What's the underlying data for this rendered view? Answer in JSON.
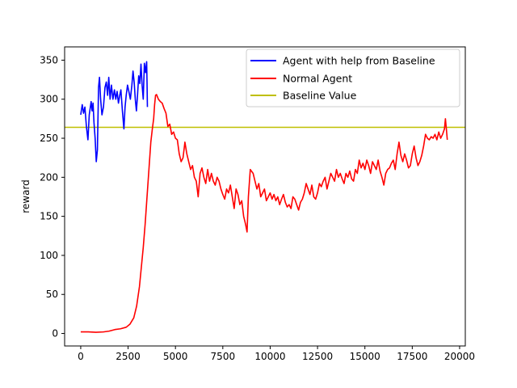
{
  "chart_data": {
    "type": "line",
    "title": "",
    "xlabel": "",
    "ylabel": "reward",
    "xlim": [
      -850,
      20300
    ],
    "ylim": [
      -16,
      367
    ],
    "xticks": [
      0,
      2500,
      5000,
      7500,
      10000,
      12500,
      15000,
      17500,
      20000
    ],
    "xtick_labels": [
      "0",
      "2500",
      "5000",
      "7500",
      "10000",
      "12500",
      "15000",
      "17500",
      "20000"
    ],
    "yticks": [
      0,
      50,
      100,
      150,
      200,
      250,
      300,
      350
    ],
    "ytick_labels": [
      "0",
      "50",
      "100",
      "150",
      "200",
      "250",
      "300",
      "350"
    ],
    "grid": false,
    "legend_position": "top-right",
    "series": [
      {
        "name": "Agent with help from Baseline",
        "color": "#0000ff",
        "kind": "line",
        "points": [
          [
            0,
            280
          ],
          [
            80,
            293
          ],
          [
            150,
            282
          ],
          [
            220,
            290
          ],
          [
            300,
            265
          ],
          [
            380,
            248
          ],
          [
            450,
            280
          ],
          [
            550,
            297
          ],
          [
            600,
            285
          ],
          [
            650,
            295
          ],
          [
            700,
            270
          ],
          [
            760,
            250
          ],
          [
            820,
            220
          ],
          [
            880,
            235
          ],
          [
            940,
            315
          ],
          [
            990,
            328
          ],
          [
            1050,
            300
          ],
          [
            1120,
            280
          ],
          [
            1200,
            290
          ],
          [
            1280,
            315
          ],
          [
            1350,
            322
          ],
          [
            1420,
            305
          ],
          [
            1480,
            328
          ],
          [
            1550,
            300
          ],
          [
            1620,
            318
          ],
          [
            1700,
            300
          ],
          [
            1780,
            312
          ],
          [
            1850,
            300
          ],
          [
            1920,
            310
          ],
          [
            1990,
            295
          ],
          [
            2060,
            305
          ],
          [
            2120,
            312
          ],
          [
            2200,
            285
          ],
          [
            2280,
            262
          ],
          [
            2340,
            290
          ],
          [
            2400,
            305
          ],
          [
            2470,
            318
          ],
          [
            2540,
            310
          ],
          [
            2620,
            300
          ],
          [
            2700,
            318
          ],
          [
            2760,
            336
          ],
          [
            2820,
            322
          ],
          [
            2880,
            300
          ],
          [
            2940,
            285
          ],
          [
            3000,
            306
          ],
          [
            3060,
            330
          ],
          [
            3120,
            320
          ],
          [
            3180,
            345
          ],
          [
            3240,
            318
          ],
          [
            3300,
            300
          ],
          [
            3360,
            346
          ],
          [
            3420,
            334
          ],
          [
            3480,
            348
          ],
          [
            3500,
            322
          ],
          [
            3520,
            290
          ]
        ]
      },
      {
        "name": "Normal Agent",
        "color": "#ff0000",
        "kind": "line",
        "points": [
          [
            0,
            2
          ],
          [
            400,
            2
          ],
          [
            800,
            1.5
          ],
          [
            1200,
            2
          ],
          [
            1500,
            3
          ],
          [
            1800,
            5
          ],
          [
            2100,
            6
          ],
          [
            2400,
            8
          ],
          [
            2600,
            12
          ],
          [
            2800,
            20
          ],
          [
            2950,
            35
          ],
          [
            3100,
            60
          ],
          [
            3200,
            85
          ],
          [
            3300,
            110
          ],
          [
            3400,
            140
          ],
          [
            3500,
            175
          ],
          [
            3600,
            210
          ],
          [
            3700,
            245
          ],
          [
            3780,
            262
          ],
          [
            3850,
            275
          ],
          [
            3900,
            293
          ],
          [
            3950,
            305
          ],
          [
            4000,
            306
          ],
          [
            4100,
            300
          ],
          [
            4200,
            297
          ],
          [
            4300,
            295
          ],
          [
            4400,
            288
          ],
          [
            4500,
            282
          ],
          [
            4600,
            265
          ],
          [
            4700,
            268
          ],
          [
            4800,
            255
          ],
          [
            4900,
            258
          ],
          [
            5000,
            250
          ],
          [
            5100,
            248
          ],
          [
            5200,
            230
          ],
          [
            5300,
            220
          ],
          [
            5400,
            225
          ],
          [
            5500,
            245
          ],
          [
            5600,
            230
          ],
          [
            5700,
            220
          ],
          [
            5800,
            210
          ],
          [
            5900,
            215
          ],
          [
            6000,
            200
          ],
          [
            6100,
            195
          ],
          [
            6200,
            175
          ],
          [
            6300,
            205
          ],
          [
            6400,
            212
          ],
          [
            6500,
            200
          ],
          [
            6600,
            192
          ],
          [
            6700,
            210
          ],
          [
            6800,
            195
          ],
          [
            6900,
            205
          ],
          [
            7000,
            195
          ],
          [
            7100,
            190
          ],
          [
            7200,
            200
          ],
          [
            7300,
            195
          ],
          [
            7400,
            185
          ],
          [
            7500,
            178
          ],
          [
            7600,
            172
          ],
          [
            7700,
            185
          ],
          [
            7800,
            180
          ],
          [
            7900,
            190
          ],
          [
            8000,
            175
          ],
          [
            8100,
            160
          ],
          [
            8200,
            185
          ],
          [
            8300,
            178
          ],
          [
            8400,
            165
          ],
          [
            8500,
            170
          ],
          [
            8600,
            150
          ],
          [
            8700,
            140
          ],
          [
            8780,
            130
          ],
          [
            8850,
            175
          ],
          [
            8950,
            210
          ],
          [
            9100,
            205
          ],
          [
            9200,
            195
          ],
          [
            9300,
            185
          ],
          [
            9400,
            192
          ],
          [
            9500,
            175
          ],
          [
            9600,
            180
          ],
          [
            9700,
            185
          ],
          [
            9800,
            170
          ],
          [
            9900,
            175
          ],
          [
            10000,
            180
          ],
          [
            10100,
            172
          ],
          [
            10200,
            178
          ],
          [
            10300,
            170
          ],
          [
            10400,
            175
          ],
          [
            10500,
            165
          ],
          [
            10600,
            172
          ],
          [
            10700,
            178
          ],
          [
            10800,
            168
          ],
          [
            10900,
            162
          ],
          [
            11000,
            165
          ],
          [
            11100,
            160
          ],
          [
            11200,
            175
          ],
          [
            11300,
            172
          ],
          [
            11400,
            165
          ],
          [
            11500,
            158
          ],
          [
            11600,
            168
          ],
          [
            11700,
            172
          ],
          [
            11800,
            180
          ],
          [
            11900,
            192
          ],
          [
            12000,
            185
          ],
          [
            12100,
            178
          ],
          [
            12200,
            190
          ],
          [
            12300,
            175
          ],
          [
            12400,
            172
          ],
          [
            12500,
            180
          ],
          [
            12600,
            192
          ],
          [
            12700,
            188
          ],
          [
            12800,
            195
          ],
          [
            12900,
            200
          ],
          [
            13000,
            185
          ],
          [
            13100,
            195
          ],
          [
            13200,
            205
          ],
          [
            13300,
            200
          ],
          [
            13400,
            195
          ],
          [
            13500,
            210
          ],
          [
            13600,
            200
          ],
          [
            13700,
            205
          ],
          [
            13800,
            198
          ],
          [
            13900,
            192
          ],
          [
            14000,
            205
          ],
          [
            14100,
            200
          ],
          [
            14200,
            208
          ],
          [
            14300,
            198
          ],
          [
            14400,
            195
          ],
          [
            14500,
            210
          ],
          [
            14600,
            205
          ],
          [
            14700,
            222
          ],
          [
            14800,
            212
          ],
          [
            14900,
            218
          ],
          [
            15000,
            210
          ],
          [
            15100,
            222
          ],
          [
            15200,
            215
          ],
          [
            15300,
            205
          ],
          [
            15400,
            220
          ],
          [
            15500,
            215
          ],
          [
            15600,
            210
          ],
          [
            15700,
            222
          ],
          [
            15800,
            208
          ],
          [
            15900,
            200
          ],
          [
            16000,
            190
          ],
          [
            16100,
            205
          ],
          [
            16200,
            210
          ],
          [
            16300,
            212
          ],
          [
            16400,
            218
          ],
          [
            16500,
            222
          ],
          [
            16600,
            210
          ],
          [
            16700,
            230
          ],
          [
            16800,
            245
          ],
          [
            16900,
            228
          ],
          [
            17000,
            220
          ],
          [
            17100,
            230
          ],
          [
            17200,
            222
          ],
          [
            17300,
            212
          ],
          [
            17400,
            215
          ],
          [
            17500,
            230
          ],
          [
            17600,
            240
          ],
          [
            17700,
            225
          ],
          [
            17800,
            215
          ],
          [
            17900,
            220
          ],
          [
            18000,
            228
          ],
          [
            18100,
            240
          ],
          [
            18200,
            255
          ],
          [
            18300,
            250
          ],
          [
            18400,
            248
          ],
          [
            18500,
            252
          ],
          [
            18600,
            250
          ],
          [
            18700,
            255
          ],
          [
            18800,
            248
          ],
          [
            18900,
            258
          ],
          [
            19000,
            250
          ],
          [
            19100,
            255
          ],
          [
            19200,
            262
          ],
          [
            19250,
            275
          ],
          [
            19300,
            262
          ],
          [
            19350,
            248
          ]
        ]
      },
      {
        "name": "Baseline Value",
        "color": "#bfbf00",
        "kind": "hline",
        "y": 264
      }
    ]
  }
}
